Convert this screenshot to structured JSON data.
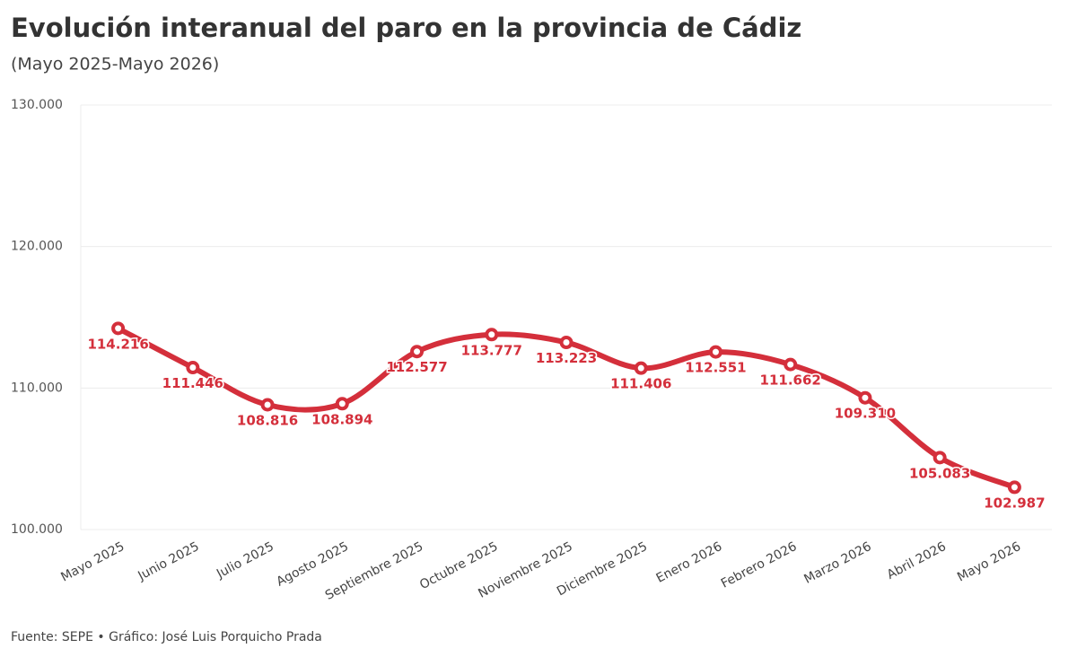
{
  "chart_data": {
    "type": "line",
    "title": "Evolución interanual del paro en la provincia de Cádiz",
    "subtitle": "(Mayo 2025-Mayo 2026)",
    "source": "Fuente: SEPE • Gráfico: José Luis Porquicho Prada",
    "categories": [
      "Mayo 2025",
      "Junio 2025",
      "Julio 2025",
      "Agosto 2025",
      "Septiembre 2025",
      "Octubre 2025",
      "Noviembre 2025",
      "Diciembre 2025",
      "Enero 2026",
      "Febrero 2026",
      "Marzo 2026",
      "Abril 2026",
      "Mayo 2026"
    ],
    "series": [
      {
        "name": "Paro",
        "color": "#d42f3b",
        "values": [
          114216,
          111446,
          108816,
          108894,
          112577,
          113777,
          113223,
          111406,
          112551,
          111662,
          109310,
          105083,
          102987
        ],
        "value_labels": [
          "114.216",
          "111.446",
          "108.816",
          "108.894",
          "112.577",
          "113.777",
          "113.223",
          "111.406",
          "112.551",
          "111.662",
          "109.310",
          "105.083",
          "102.987"
        ]
      }
    ],
    "ylim": [
      100000,
      130000
    ],
    "yticks": [
      {
        "value": 100000,
        "label": "100.000"
      },
      {
        "value": 110000,
        "label": "110.000"
      },
      {
        "value": 120000,
        "label": "120.000"
      },
      {
        "value": 130000,
        "label": "130.000"
      }
    ],
    "grid": true
  }
}
